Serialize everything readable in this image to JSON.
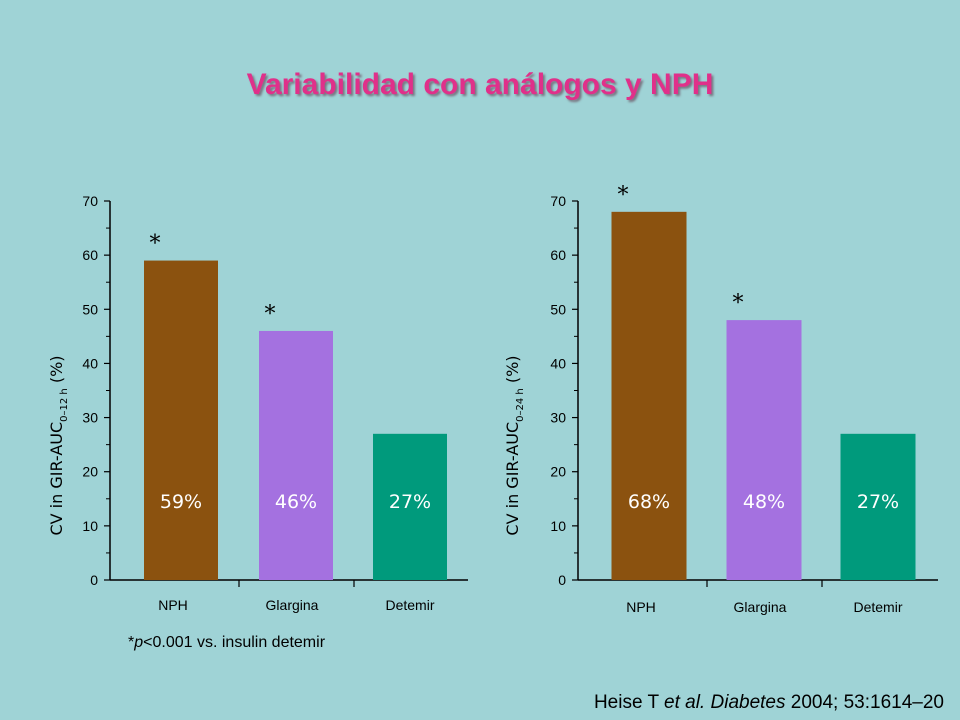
{
  "title": "Variabilidad con análogos y NPH",
  "colors": {
    "NPH": "#8b520f",
    "Glargina": "#a471e0",
    "Detemir": "#009a7c",
    "background": "#9fd3d6",
    "title": "#e0308a"
  },
  "chart_data": [
    {
      "type": "bar",
      "ylabel": "CV in GIR-AUC0–12 h (%)",
      "ylabel_main": "CV in GIR-AUC",
      "ylabel_sub": "0–12 h",
      "ylabel_unit": "(%)",
      "ylim": [
        0,
        70
      ],
      "yticks": [
        0,
        10,
        20,
        30,
        40,
        50,
        60,
        70
      ],
      "categories": [
        "NPH",
        "Glargina",
        "Detemir"
      ],
      "values": [
        59,
        46,
        27
      ],
      "value_labels": [
        "59%",
        "46%",
        "27%"
      ],
      "significant": [
        true,
        true,
        false
      ],
      "significance_marker": "*"
    },
    {
      "type": "bar",
      "ylabel": "CV in GIR-AUC0–24 h (%)",
      "ylabel_main": "CV in GIR-AUC",
      "ylabel_sub": "0–24 h",
      "ylabel_unit": "(%)",
      "ylim": [
        0,
        70
      ],
      "yticks": [
        0,
        10,
        20,
        30,
        40,
        50,
        60,
        70
      ],
      "categories": [
        "NPH",
        "Glargina",
        "Detemir"
      ],
      "values": [
        68,
        48,
        27
      ],
      "value_labels": [
        "68%",
        "48%",
        "27%"
      ],
      "significant": [
        true,
        true,
        false
      ],
      "significance_marker": "*"
    }
  ],
  "footnote": {
    "star": "*",
    "p": "p",
    "rest": "<0.001 vs. insulin detemir"
  },
  "citation": {
    "authors": "Heise T ",
    "etal": "et al.",
    "journal": " Diabetes",
    "rest": " 2004; 53:1614–20"
  }
}
